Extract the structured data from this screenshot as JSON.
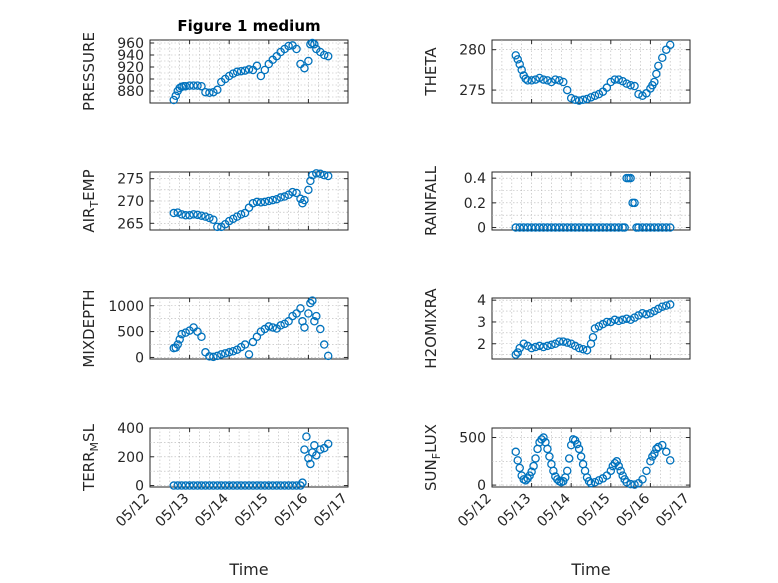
{
  "figure": {
    "title": "Figure 1 medium",
    "xlabel": "Time",
    "x_ticks": [
      "05/12",
      "05/13",
      "05/14",
      "05/15",
      "05/16",
      "05/17"
    ],
    "marker_color": "#0072bd"
  },
  "chart_data": [
    {
      "type": "scatter",
      "panel": "pressure",
      "title": "Figure 1 medium",
      "ylabel": "PRESSURE",
      "ylabel_sub": "",
      "ylabel_tail": "",
      "xlim": [
        0,
        5
      ],
      "ylim": [
        860,
        965
      ],
      "yticks": [
        880,
        900,
        920,
        940,
        960
      ],
      "series": [
        {
          "x": [
            0.6,
            0.65,
            0.7,
            0.75,
            0.8,
            0.85,
            0.9,
            1,
            1.1,
            1.2,
            1.3,
            1.4,
            1.5,
            1.6,
            1.7,
            1.8,
            1.9,
            2,
            2.1,
            2.2,
            2.3,
            2.4,
            2.5,
            2.6,
            2.7,
            2.8,
            2.9,
            3,
            3.1,
            3.2,
            3.3,
            3.4,
            3.5,
            3.6,
            3.7,
            3.8,
            3.9,
            4,
            4.05,
            4.1,
            4.15,
            4.2,
            4.3,
            4.4,
            4.5
          ],
          "y": [
            865,
            872,
            880,
            885,
            887,
            888,
            888,
            889,
            889,
            889,
            888,
            878,
            877,
            878,
            882,
            895,
            900,
            905,
            909,
            912,
            913,
            914,
            916,
            915,
            922,
            905,
            915,
            925,
            932,
            938,
            945,
            950,
            955,
            956,
            950,
            925,
            918,
            930,
            958,
            960,
            958,
            950,
            945,
            940,
            938
          ]
        }
      ]
    },
    {
      "type": "scatter",
      "panel": "theta",
      "ylabel": "THETA",
      "ylabel_sub": "",
      "ylabel_tail": "",
      "xlim": [
        0,
        5
      ],
      "ylim": [
        273.4,
        281.2
      ],
      "yticks": [
        275,
        280
      ],
      "series": [
        {
          "x": [
            0.6,
            0.65,
            0.7,
            0.75,
            0.8,
            0.85,
            0.9,
            1,
            1.1,
            1.2,
            1.3,
            1.4,
            1.5,
            1.6,
            1.7,
            1.8,
            1.9,
            2,
            2.1,
            2.2,
            2.3,
            2.4,
            2.5,
            2.6,
            2.7,
            2.8,
            2.9,
            3,
            3.1,
            3.2,
            3.3,
            3.4,
            3.5,
            3.6,
            3.7,
            3.8,
            3.9,
            4,
            4.05,
            4.1,
            4.15,
            4.2,
            4.3,
            4.4,
            4.5
          ],
          "y": [
            279.3,
            278.8,
            278.2,
            277.5,
            276.8,
            276.4,
            276.2,
            276.2,
            276.3,
            276.5,
            276.3,
            276.2,
            276.0,
            276.3,
            276.2,
            276.0,
            275.0,
            274.0,
            273.8,
            273.7,
            273.8,
            273.9,
            274.1,
            274.3,
            274.5,
            274.8,
            275.3,
            276.0,
            276.3,
            276.3,
            276.1,
            275.8,
            275.6,
            275.5,
            274.5,
            274.3,
            274.6,
            275.2,
            275.6,
            276.0,
            277.0,
            278.0,
            279.0,
            280.0,
            280.6
          ]
        }
      ]
    },
    {
      "type": "scatter",
      "panel": "air_temp",
      "ylabel": "AIR",
      "ylabel_sub": "T",
      "ylabel_tail": "EMP",
      "xlim": [
        0,
        5
      ],
      "ylim": [
        263.5,
        276.5
      ],
      "yticks": [
        265,
        270,
        275
      ],
      "series": [
        {
          "x": [
            0.6,
            0.7,
            0.8,
            0.9,
            1,
            1.1,
            1.2,
            1.3,
            1.4,
            1.5,
            1.6,
            1.7,
            1.8,
            1.9,
            2,
            2.1,
            2.2,
            2.3,
            2.4,
            2.5,
            2.6,
            2.7,
            2.8,
            2.9,
            3,
            3.1,
            3.2,
            3.3,
            3.4,
            3.5,
            3.6,
            3.7,
            3.8,
            3.85,
            3.9,
            4,
            4.05,
            4.1,
            4.2,
            4.3,
            4.4,
            4.5
          ],
          "y": [
            267.3,
            267.4,
            267.0,
            266.8,
            266.8,
            267.0,
            266.9,
            266.7,
            266.5,
            266.2,
            265.8,
            264.2,
            264.2,
            264.8,
            265.5,
            266.0,
            266.5,
            267.0,
            267.3,
            268.5,
            269.5,
            269.8,
            269.7,
            269.8,
            270.0,
            270.2,
            270.4,
            270.8,
            271.0,
            271.4,
            272.0,
            271.8,
            270.5,
            269.5,
            270.2,
            272.5,
            274.5,
            275.8,
            276.2,
            276.1,
            275.8,
            275.6
          ]
        }
      ]
    },
    {
      "type": "scatter",
      "panel": "rainfall",
      "ylabel": "RAINFALL",
      "ylabel_sub": "",
      "ylabel_tail": "",
      "xlim": [
        0,
        5
      ],
      "ylim": [
        -0.02,
        0.45
      ],
      "yticks": [
        0,
        0.2,
        0.4
      ],
      "series": [
        {
          "x": [
            0.6,
            0.7,
            0.8,
            0.9,
            1,
            1.1,
            1.2,
            1.3,
            1.4,
            1.5,
            1.6,
            1.7,
            1.8,
            1.9,
            2,
            2.1,
            2.2,
            2.3,
            2.4,
            2.5,
            2.6,
            2.7,
            2.8,
            2.9,
            3,
            3.1,
            3.2,
            3.3,
            3.35,
            3.4,
            3.45,
            3.5,
            3.55,
            3.6,
            3.65,
            3.7,
            3.8,
            3.9,
            4,
            4.1,
            4.2,
            4.3,
            4.4,
            4.5
          ],
          "y": [
            0,
            0,
            0,
            0,
            0,
            0,
            0,
            0,
            0,
            0,
            0,
            0,
            0,
            0,
            0,
            0,
            0,
            0,
            0,
            0,
            0,
            0,
            0,
            0,
            0,
            0,
            0,
            0,
            0,
            0.4,
            0.4,
            0.4,
            0.2,
            0.2,
            0,
            0,
            0,
            0,
            0,
            0,
            0,
            0,
            0,
            0
          ]
        }
      ]
    },
    {
      "type": "scatter",
      "panel": "mixdepth",
      "ylabel": "MIXDEPTH",
      "ylabel_sub": "",
      "ylabel_tail": "",
      "xlim": [
        0,
        5
      ],
      "ylim": [
        -30,
        1150
      ],
      "yticks": [
        0,
        500,
        1000
      ],
      "series": [
        {
          "x": [
            0.6,
            0.65,
            0.7,
            0.75,
            0.8,
            0.9,
            1,
            1.1,
            1.2,
            1.3,
            1.4,
            1.5,
            1.6,
            1.7,
            1.8,
            1.9,
            2,
            2.1,
            2.2,
            2.3,
            2.4,
            2.5,
            2.6,
            2.7,
            2.8,
            2.9,
            3,
            3.1,
            3.2,
            3.3,
            3.4,
            3.5,
            3.6,
            3.7,
            3.8,
            3.85,
            3.9,
            4,
            4.05,
            4.1,
            4.15,
            4.2,
            4.3,
            4.4,
            4.5
          ],
          "y": [
            180,
            190,
            250,
            350,
            450,
            480,
            520,
            580,
            500,
            400,
            100,
            20,
            10,
            30,
            60,
            80,
            100,
            120,
            150,
            200,
            250,
            60,
            300,
            400,
            500,
            550,
            600,
            580,
            560,
            620,
            650,
            700,
            800,
            850,
            950,
            700,
            580,
            850,
            1050,
            1100,
            700,
            800,
            550,
            250,
            30
          ]
        }
      ]
    },
    {
      "type": "scatter",
      "panel": "h2omixra",
      "ylabel": "H2OMIXRA",
      "ylabel_sub": "",
      "ylabel_tail": "",
      "xlim": [
        0,
        5
      ],
      "ylim": [
        1.3,
        4.1
      ],
      "yticks": [
        2,
        3,
        4
      ],
      "series": [
        {
          "x": [
            0.6,
            0.65,
            0.7,
            0.8,
            0.9,
            1,
            1.1,
            1.2,
            1.3,
            1.4,
            1.5,
            1.6,
            1.7,
            1.8,
            1.9,
            2,
            2.1,
            2.2,
            2.3,
            2.4,
            2.5,
            2.55,
            2.6,
            2.7,
            2.8,
            2.9,
            3,
            3.1,
            3.2,
            3.3,
            3.4,
            3.5,
            3.6,
            3.7,
            3.8,
            3.9,
            4,
            4.1,
            4.2,
            4.3,
            4.4,
            4.5
          ],
          "y": [
            1.5,
            1.6,
            1.8,
            2.0,
            1.9,
            1.8,
            1.85,
            1.9,
            1.85,
            1.9,
            1.95,
            2.0,
            2.1,
            2.1,
            2.05,
            2.0,
            1.9,
            1.8,
            1.75,
            1.7,
            2.0,
            2.3,
            2.7,
            2.8,
            2.9,
            3.0,
            3.0,
            3.1,
            3.05,
            3.1,
            3.15,
            3.1,
            3.2,
            3.3,
            3.4,
            3.35,
            3.4,
            3.5,
            3.6,
            3.7,
            3.75,
            3.8
          ]
        }
      ]
    },
    {
      "type": "scatter",
      "panel": "terr_msl",
      "ylabel": "TERR",
      "ylabel_sub": "M",
      "ylabel_tail": "SL",
      "xlim": [
        0,
        5
      ],
      "ylim": [
        -10,
        400
      ],
      "yticks": [
        0,
        200,
        400
      ],
      "series": [
        {
          "x": [
            0.6,
            0.7,
            0.8,
            0.9,
            1,
            1.1,
            1.2,
            1.3,
            1.4,
            1.5,
            1.6,
            1.7,
            1.8,
            1.9,
            2,
            2.1,
            2.2,
            2.3,
            2.4,
            2.5,
            2.6,
            2.7,
            2.8,
            2.9,
            3,
            3.1,
            3.2,
            3.3,
            3.4,
            3.5,
            3.6,
            3.7,
            3.8,
            3.85,
            3.9,
            3.95,
            4,
            4.05,
            4.1,
            4.15,
            4.2,
            4.3,
            4.4,
            4.5
          ],
          "y": [
            0,
            0,
            0,
            0,
            0,
            0,
            0,
            0,
            0,
            0,
            0,
            0,
            0,
            0,
            0,
            0,
            0,
            0,
            0,
            0,
            0,
            0,
            0,
            0,
            0,
            0,
            0,
            0,
            0,
            0,
            0,
            0,
            0,
            20,
            250,
            340,
            190,
            150,
            230,
            280,
            210,
            250,
            260,
            290
          ]
        }
      ]
    },
    {
      "type": "scatter",
      "panel": "sun_flux",
      "ylabel": "SUN",
      "ylabel_sub": "F",
      "ylabel_tail": "LUX",
      "xlim": [
        0,
        5
      ],
      "ylim": [
        -20,
        600
      ],
      "yticks": [
        0,
        500
      ],
      "series": [
        {
          "x": [
            0.6,
            0.65,
            0.7,
            0.75,
            0.8,
            0.85,
            0.9,
            0.95,
            1,
            1.05,
            1.1,
            1.15,
            1.2,
            1.25,
            1.3,
            1.35,
            1.4,
            1.45,
            1.5,
            1.55,
            1.6,
            1.65,
            1.7,
            1.75,
            1.8,
            1.85,
            1.9,
            1.95,
            2,
            2.05,
            2.1,
            2.15,
            2.2,
            2.25,
            2.3,
            2.35,
            2.4,
            2.45,
            2.5,
            2.6,
            2.7,
            2.8,
            2.9,
            3,
            3.05,
            3.1,
            3.15,
            3.2,
            3.25,
            3.3,
            3.35,
            3.4,
            3.5,
            3.6,
            3.7,
            3.8,
            3.9,
            4,
            4.05,
            4.1,
            4.15,
            4.2,
            4.3,
            4.4,
            4.5
          ],
          "y": [
            350,
            260,
            180,
            100,
            60,
            50,
            70,
            100,
            140,
            200,
            280,
            380,
            450,
            480,
            500,
            450,
            380,
            300,
            220,
            150,
            90,
            60,
            40,
            30,
            40,
            80,
            150,
            280,
            420,
            480,
            470,
            430,
            380,
            300,
            220,
            150,
            80,
            40,
            20,
            30,
            50,
            70,
            100,
            150,
            200,
            230,
            250,
            200,
            150,
            100,
            60,
            30,
            10,
            5,
            20,
            60,
            150,
            250,
            300,
            330,
            380,
            400,
            420,
            350,
            260
          ]
        }
      ]
    }
  ]
}
